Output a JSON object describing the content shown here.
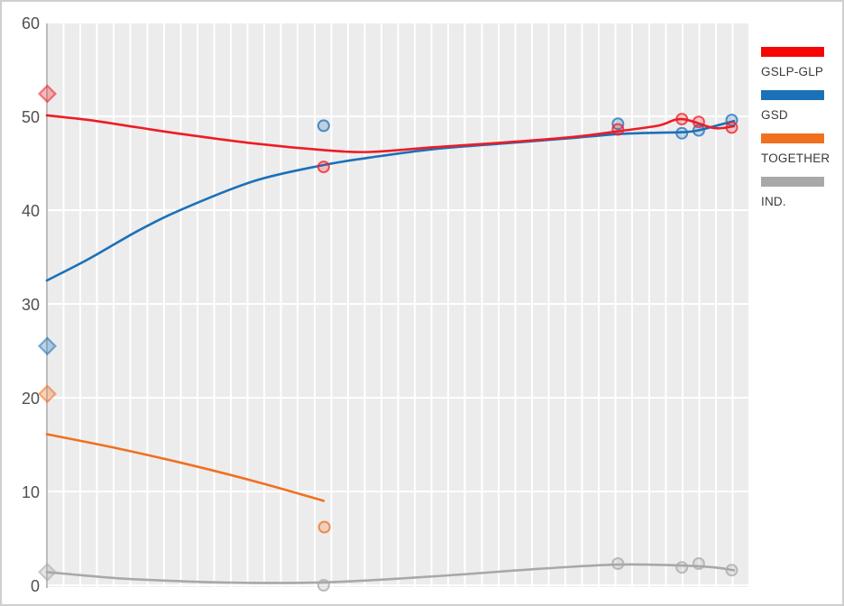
{
  "window": {
    "background": "#ffffff",
    "frame_border_color": "#cfcfcf"
  },
  "legend": {
    "position": "right",
    "items": [
      {
        "label": "GSLP-GLP",
        "color": "#f60505"
      },
      {
        "label": "GSD",
        "color": "#1c70b8"
      },
      {
        "label": "TOGETHER",
        "color": "#f07020"
      },
      {
        "label": "IND.",
        "color": "#a8a8a8"
      }
    ]
  },
  "chart_data": {
    "type": "line",
    "title": "",
    "xlabel": "",
    "ylabel": "",
    "grid": "on",
    "plot_background": "#ececec",
    "gridline_color": "#ffffff",
    "y_axis": {
      "ticks": [
        0,
        10,
        20,
        30,
        40,
        50,
        60
      ],
      "range": [
        0,
        60
      ],
      "tick_label_color": "#4f4f4f"
    },
    "x_axis": {
      "tick_labels": [],
      "note": "no visible x-axis labels; x values below are fractions 0-1 of the plot width"
    },
    "series": [
      {
        "name": "GSLP-GLP",
        "color": "#ee1c25",
        "trend": [
          [
            0,
            50.2
          ],
          [
            0.06,
            49.7
          ],
          [
            0.13,
            48.9
          ],
          [
            0.193,
            48.2
          ],
          [
            0.295,
            47.2
          ],
          [
            0.394,
            46.5
          ],
          [
            0.46,
            46.3
          ],
          [
            0.55,
            46.8
          ],
          [
            0.65,
            47.3
          ],
          [
            0.75,
            47.9
          ],
          [
            0.813,
            48.5
          ],
          [
            0.87,
            49.1
          ],
          [
            0.904,
            49.8
          ],
          [
            0.95,
            48.85
          ],
          [
            0.978,
            49.05
          ]
        ],
        "diamond_marker": {
          "x": 0,
          "value": 52.5
        },
        "circle_points": [
          [
            0.394,
            44.7
          ],
          [
            0.813,
            48.7
          ],
          [
            0.904,
            49.8
          ],
          [
            0.928,
            49.5
          ],
          [
            0.975,
            48.9
          ]
        ]
      },
      {
        "name": "GSD",
        "color": "#1c70b8",
        "trend": [
          [
            0,
            32.6
          ],
          [
            0.06,
            34.9
          ],
          [
            0.13,
            37.9
          ],
          [
            0.193,
            40.2
          ],
          [
            0.295,
            43.2
          ],
          [
            0.394,
            44.9
          ],
          [
            0.46,
            45.7
          ],
          [
            0.55,
            46.6
          ],
          [
            0.65,
            47.2
          ],
          [
            0.75,
            47.8
          ],
          [
            0.813,
            48.2
          ],
          [
            0.87,
            48.35
          ],
          [
            0.904,
            48.4
          ],
          [
            0.927,
            48.6
          ],
          [
            0.978,
            49.6
          ]
        ],
        "diamond_marker": {
          "x": 0,
          "value": 25.6
        },
        "circle_points": [
          [
            0.394,
            49.1
          ],
          [
            0.813,
            49.3
          ],
          [
            0.904,
            48.3
          ],
          [
            0.928,
            48.6
          ],
          [
            0.975,
            49.7
          ]
        ]
      },
      {
        "name": "TOGETHER",
        "color": "#f07020",
        "trend": [
          [
            0,
            16.2
          ],
          [
            0.1,
            14.7
          ],
          [
            0.2,
            13.0
          ],
          [
            0.3,
            11.1
          ],
          [
            0.394,
            9.1
          ]
        ],
        "diamond_marker": {
          "x": 0,
          "value": 20.5
        },
        "circle_points": [
          [
            0.395,
            6.3
          ]
        ]
      },
      {
        "name": "IND.",
        "color": "#a8a8a8",
        "trend": [
          [
            0,
            1.5
          ],
          [
            0.1,
            0.85
          ],
          [
            0.2,
            0.5
          ],
          [
            0.3,
            0.35
          ],
          [
            0.394,
            0.4
          ],
          [
            0.5,
            0.8
          ],
          [
            0.6,
            1.3
          ],
          [
            0.7,
            1.85
          ],
          [
            0.813,
            2.3
          ],
          [
            0.904,
            2.2
          ],
          [
            0.95,
            2.0
          ],
          [
            0.978,
            1.7
          ]
        ],
        "diamond_marker": {
          "x": 0,
          "value": 1.5
        },
        "circle_points": [
          [
            0.394,
            0.1
          ],
          [
            0.813,
            2.4
          ],
          [
            0.904,
            2.0
          ],
          [
            0.928,
            2.4
          ],
          [
            0.975,
            1.7
          ]
        ]
      }
    ]
  }
}
